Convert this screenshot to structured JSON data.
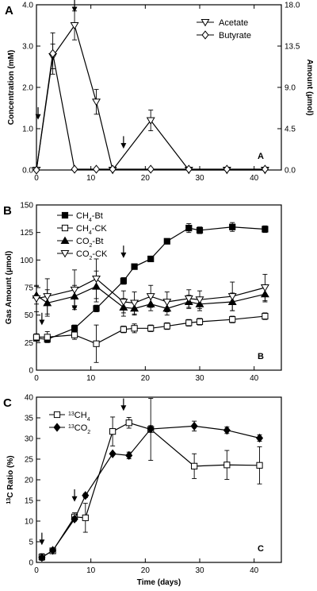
{
  "chart_data": [
    {
      "type": "line",
      "panel_label": "A",
      "inner_label": "A",
      "ylabel": "Concentration (mM)",
      "y2label": "Amount (μmol)",
      "xlim": [
        0,
        45
      ],
      "ylim": [
        0,
        4.0
      ],
      "y2lim": [
        0,
        18.0
      ],
      "xticks": [
        "0",
        "10",
        "20",
        "30",
        "40"
      ],
      "yticks": [
        "0.0",
        "1.0",
        "2.0",
        "3.0",
        "4.0"
      ],
      "y2ticks": [
        "0.0",
        "4.5",
        "9.0",
        "13.5",
        "18.0"
      ],
      "legend_position": "top-right",
      "arrows_at": [
        [
          0.3,
          1.25
        ],
        [
          7,
          3.85
        ],
        [
          16,
          0.55
        ]
      ],
      "series": [
        {
          "name": "Acetate",
          "marker": "triangle-down-open",
          "x": [
            0,
            3,
            7,
            11,
            14,
            21,
            28,
            35,
            42
          ],
          "y": [
            0,
            2.75,
            3.5,
            1.65,
            0,
            1.2,
            0,
            0,
            0
          ],
          "err": [
            0,
            0.3,
            0.35,
            0.3,
            0,
            0.25,
            0,
            0,
            0
          ]
        },
        {
          "name": "Butyrate",
          "marker": "diamond-open",
          "x": [
            0,
            3,
            7,
            11,
            14,
            21,
            28,
            35,
            42
          ],
          "y": [
            0,
            2.82,
            0.02,
            0.02,
            0.02,
            0.02,
            0.02,
            0.02,
            0.02
          ],
          "err": [
            0,
            0.5,
            0,
            0,
            0,
            0,
            0,
            0,
            0
          ]
        }
      ]
    },
    {
      "type": "line",
      "panel_label": "B",
      "inner_label": "B",
      "ylabel": "Gas  Amount (μmol)",
      "xlim": [
        0,
        45
      ],
      "ylim": [
        0,
        150
      ],
      "xticks": [
        "0",
        "10",
        "20",
        "30",
        "40"
      ],
      "yticks": [
        "0",
        "25",
        "50",
        "75",
        "100",
        "125",
        "150"
      ],
      "legend_position": "top-left",
      "arrows_at": [
        [
          1,
          42
        ],
        [
          7,
          55
        ],
        [
          16,
          103
        ]
      ],
      "series": [
        {
          "name_main": "CH",
          "name_sub": "4",
          "name_rest": "-Bt",
          "marker": "square-filled",
          "x": [
            0,
            2,
            7,
            11,
            16,
            18,
            21,
            24,
            28,
            30,
            36,
            42
          ],
          "y": [
            29,
            28,
            38,
            56,
            81,
            94,
            101,
            117,
            129,
            127,
            130,
            128
          ],
          "err": [
            2,
            2,
            3,
            3,
            3,
            2,
            2,
            2,
            4,
            3,
            4,
            3
          ]
        },
        {
          "name_main": "CH",
          "name_sub": "4",
          "name_rest": "-CK",
          "marker": "square-open",
          "x": [
            0,
            2,
            7,
            11,
            16,
            18,
            21,
            24,
            28,
            30,
            36,
            42
          ],
          "y": [
            30,
            30,
            32,
            24,
            37,
            38,
            38,
            40,
            43,
            44,
            46,
            49
          ],
          "err": [
            3,
            5,
            4,
            17,
            3,
            4,
            3,
            3,
            3,
            3,
            3,
            3
          ]
        },
        {
          "name_main": "CO",
          "name_sub": "2",
          "name_rest": "-Bt",
          "marker": "triangle-up-filled",
          "x": [
            0,
            2,
            7,
            11,
            16,
            18,
            21,
            24,
            28,
            30,
            36,
            42
          ],
          "y": [
            68,
            61,
            67,
            76,
            57,
            56,
            60,
            56,
            62,
            60,
            62,
            69
          ],
          "err": [
            8,
            12,
            10,
            14,
            8,
            6,
            6,
            6,
            6,
            6,
            8,
            7
          ]
        },
        {
          "name_main": "CO",
          "name_sub": "2",
          "name_rest": "-CK",
          "marker": "triangle-down-open",
          "x": [
            0,
            2,
            7,
            11,
            16,
            18,
            21,
            24,
            28,
            30,
            36,
            42
          ],
          "y": [
            65,
            67,
            73,
            83,
            62,
            61,
            67,
            62,
            65,
            64,
            67,
            75
          ],
          "err": [
            12,
            16,
            18,
            18,
            10,
            10,
            10,
            9,
            8,
            8,
            13,
            12
          ]
        }
      ]
    },
    {
      "type": "line",
      "panel_label": "C",
      "inner_label": "C",
      "ylabel_pre": "13",
      "ylabel_rest": "C Ratio (%)",
      "xlabel": "Time (days)",
      "xlim": [
        0,
        45
      ],
      "ylim": [
        0,
        40
      ],
      "xticks": [
        "0",
        "10",
        "20",
        "30",
        "40"
      ],
      "yticks": [
        "0",
        "5",
        "10",
        "15",
        "20",
        "25",
        "30",
        "35",
        "40"
      ],
      "legend_position": "top-left",
      "arrows_at": [
        [
          1,
          4.5
        ],
        [
          7,
          15
        ],
        [
          16,
          37
        ]
      ],
      "series": [
        {
          "name_pre": "13",
          "name_main": "CH",
          "name_sub": "4",
          "marker": "square-open",
          "x": [
            1,
            3,
            7,
            9,
            14,
            17,
            21,
            29,
            35,
            41
          ],
          "y": [
            1.3,
            2.8,
            11,
            10.8,
            31.7,
            33.8,
            32.2,
            23.3,
            23.6,
            23.5
          ],
          "err": [
            0.8,
            0.5,
            1,
            3.5,
            3.5,
            1.3,
            7.5,
            3,
            3.5,
            4.5
          ]
        },
        {
          "name_pre": "13",
          "name_main": "CO",
          "name_sub": "2",
          "marker": "diamond-filled",
          "x": [
            1,
            3,
            7,
            9,
            14,
            17,
            21,
            29,
            35,
            41
          ],
          "y": [
            1.2,
            2.9,
            10.5,
            16.2,
            26.3,
            25.9,
            32.3,
            33,
            32,
            30.1
          ],
          "err": [
            0.4,
            0.3,
            0.5,
            0.5,
            0.3,
            0.8,
            0.8,
            1.2,
            0.8,
            0.8
          ]
        }
      ]
    }
  ]
}
